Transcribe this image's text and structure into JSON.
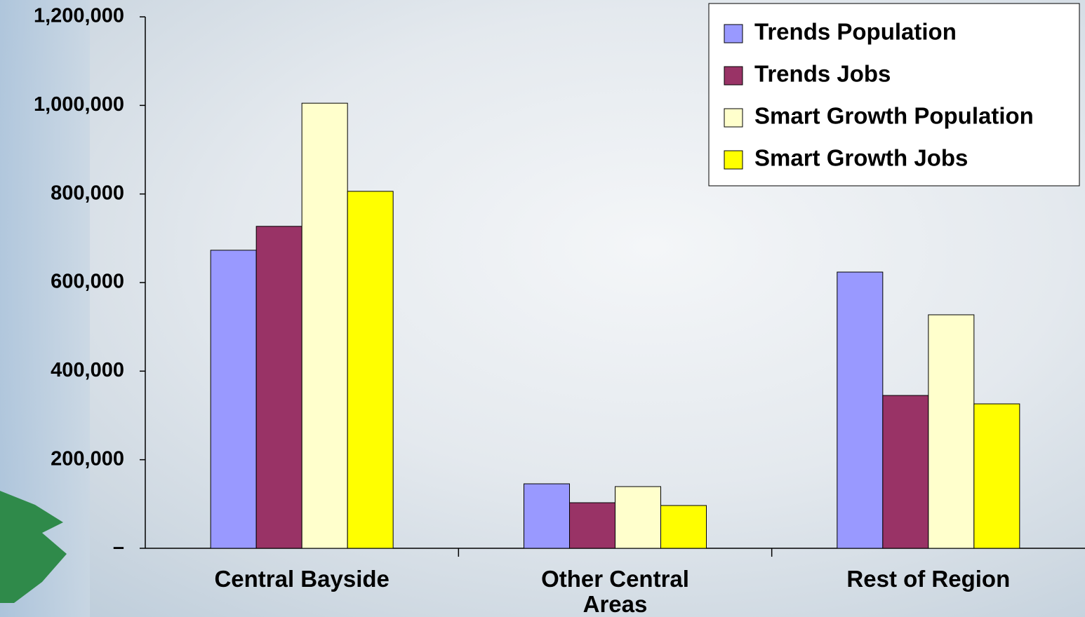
{
  "chart_data": {
    "type": "bar",
    "categories": [
      "Central Bayside",
      "Other Central Areas",
      "Rest of Region"
    ],
    "series": [
      {
        "name": "Trends Population",
        "color": "#9999ff",
        "values": [
          673000,
          145600,
          623700
        ]
      },
      {
        "name": "Trends Jobs",
        "color": "#993366",
        "values": [
          727000,
          102900,
          345100
        ]
      },
      {
        "name": "Smart Growth Population",
        "color": "#ffffcc",
        "values": [
          1005000,
          139300,
          527200
        ]
      },
      {
        "name": "Smart Growth Jobs",
        "color": "#ffff00",
        "values": [
          806000,
          96600,
          326100
        ]
      }
    ],
    "ylim": [
      0,
      1200000
    ],
    "yticks": [
      {
        "value": 0,
        "label": "–"
      },
      {
        "value": 200000,
        "label": "200,000"
      },
      {
        "value": 400000,
        "label": "400,000"
      },
      {
        "value": 600000,
        "label": "600,000"
      },
      {
        "value": 800000,
        "label": "800,000"
      },
      {
        "value": 1000000,
        "label": "1,000,000"
      },
      {
        "value": 1200000,
        "label": "1,200,000"
      }
    ],
    "legend": "upper right"
  }
}
